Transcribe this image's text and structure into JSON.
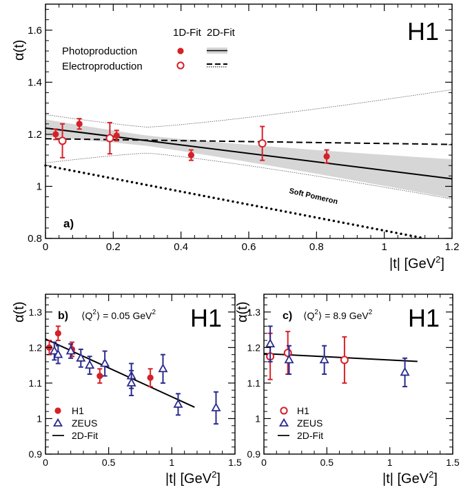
{
  "chart_data": [
    {
      "panel_label": "a)",
      "type": "scatter",
      "experiment": "H1",
      "xlabel_base": "|t|  [GeV",
      "xlabel_exp": "2",
      "xlabel_close": "]",
      "ylabel": "α(t)",
      "xlim": [
        0,
        1.2
      ],
      "ylim": [
        0.8,
        1.7
      ],
      "xticks": [
        "0",
        "0.2",
        "0.4",
        "0.6",
        "0.8",
        "1",
        "1.2"
      ],
      "yticks": [
        "0.8",
        "1",
        "1.2",
        "1.4",
        "1.6"
      ],
      "legend_headers": [
        "1D-Fit",
        "2D-Fit"
      ],
      "legend_rows": [
        "Photoproduction",
        "Electroproduction"
      ],
      "annotation": "Soft Pomeron",
      "colors": {
        "h1": "#d62028",
        "zeus": "#2a2a8c",
        "band": "#d6d6d6"
      },
      "series": [
        {
          "name": "Photoproduction",
          "marker": "filled-circle",
          "points": [
            {
              "x": 0.03,
              "y": 1.2,
              "yerr": 0.02
            },
            {
              "x": 0.1,
              "y": 1.24,
              "yerr": 0.02
            },
            {
              "x": 0.21,
              "y": 1.195,
              "yerr": 0.02
            },
            {
              "x": 0.43,
              "y": 1.12,
              "yerr": 0.02
            },
            {
              "x": 0.83,
              "y": 1.115,
              "yerr": 0.025
            }
          ]
        },
        {
          "name": "Electroproduction",
          "marker": "open-circle",
          "points": [
            {
              "x": 0.05,
              "y": 1.175,
              "yerr": 0.065
            },
            {
              "x": 0.19,
              "y": 1.185,
              "yerr": 0.06
            },
            {
              "x": 0.64,
              "y": 1.165,
              "yerr": 0.065
            }
          ]
        },
        {
          "name": "Photoproduction",
          "type": "line",
          "style": "solid",
          "x": [
            0,
            1.2
          ],
          "y": [
            1.224,
            1.029
          ]
        },
        {
          "name": "Electroproduction",
          "type": "line",
          "style": "dashed",
          "x": [
            0,
            1.2
          ],
          "y": [
            1.183,
            1.161
          ]
        },
        {
          "name": "Soft Pomeron",
          "type": "line",
          "style": "dotted",
          "x": [
            0,
            1.12
          ],
          "y": [
            1.08,
            0.8
          ]
        }
      ]
    },
    {
      "panel_label": "b)",
      "type": "scatter",
      "experiment": "H1",
      "title_prefix": "⟨Q",
      "title_exp": "2",
      "title_suffix": "⟩ = 0.05 GeV",
      "title_unit_exp": "2",
      "xlabel_base": "|t|  [GeV",
      "xlabel_exp": "2",
      "xlabel_close": "]",
      "ylabel": "α(t)",
      "xlim": [
        0,
        1.5
      ],
      "ylim": [
        0.9,
        1.35
      ],
      "xticks": [
        "0",
        "0.5",
        "1",
        "1.5"
      ],
      "yticks": [
        "0.9",
        "1",
        "1.1",
        "1.2",
        "1.3"
      ],
      "legend": [
        "H1",
        "ZEUS",
        "2D-Fit"
      ],
      "series": [
        {
          "name": "H1",
          "marker": "filled-circle",
          "points": [
            {
              "x": 0.03,
              "y": 1.2,
              "yerr": 0.02
            },
            {
              "x": 0.1,
              "y": 1.24,
              "yerr": 0.02
            },
            {
              "x": 0.21,
              "y": 1.195,
              "yerr": 0.02
            },
            {
              "x": 0.43,
              "y": 1.12,
              "yerr": 0.02
            },
            {
              "x": 0.83,
              "y": 1.115,
              "yerr": 0.025
            }
          ]
        },
        {
          "name": "ZEUS",
          "marker": "open-triangle",
          "points": [
            {
              "x": 0.07,
              "y": 1.19,
              "yerr": 0.025
            },
            {
              "x": 0.1,
              "y": 1.18,
              "yerr": 0.025
            },
            {
              "x": 0.2,
              "y": 1.19,
              "yerr": 0.02
            },
            {
              "x": 0.28,
              "y": 1.17,
              "yerr": 0.025
            },
            {
              "x": 0.35,
              "y": 1.15,
              "yerr": 0.025
            },
            {
              "x": 0.47,
              "y": 1.155,
              "yerr": 0.035
            },
            {
              "x": 0.68,
              "y": 1.12,
              "yerr": 0.035
            },
            {
              "x": 0.68,
              "y": 1.1,
              "yerr": 0.035
            },
            {
              "x": 0.93,
              "y": 1.14,
              "yerr": 0.04
            },
            {
              "x": 1.05,
              "y": 1.04,
              "yerr": 0.03
            },
            {
              "x": 1.35,
              "y": 1.03,
              "yerr": 0.045
            }
          ]
        },
        {
          "name": "2D-Fit",
          "type": "line",
          "style": "solid",
          "x": [
            0,
            1.18
          ],
          "y": [
            1.224,
            1.032
          ]
        }
      ]
    },
    {
      "panel_label": "c)",
      "type": "scatter",
      "experiment": "H1",
      "title_prefix": "⟨Q",
      "title_exp": "2",
      "title_suffix": "⟩ = 8.9 GeV",
      "title_unit_exp": "2",
      "xlabel_base": "|t|  [GeV",
      "xlabel_exp": "2",
      "xlabel_close": "]",
      "ylabel": "α(t)",
      "xlim": [
        0,
        1.5
      ],
      "ylim": [
        0.9,
        1.35
      ],
      "xticks": [
        "0",
        "0.5",
        "1",
        "1.5"
      ],
      "yticks": [
        "0.9",
        "1",
        "1.1",
        "1.2",
        "1.3"
      ],
      "legend": [
        "H1",
        "ZEUS",
        "2D-Fit"
      ],
      "series": [
        {
          "name": "H1",
          "marker": "open-circle",
          "points": [
            {
              "x": 0.05,
              "y": 1.175,
              "yerr": 0.065
            },
            {
              "x": 0.19,
              "y": 1.185,
              "yerr": 0.06
            },
            {
              "x": 0.64,
              "y": 1.165,
              "yerr": 0.065
            }
          ]
        },
        {
          "name": "ZEUS",
          "marker": "open-triangle",
          "points": [
            {
              "x": 0.05,
              "y": 1.21,
              "yerr": 0.05
            },
            {
              "x": 0.2,
              "y": 1.165,
              "yerr": 0.04
            },
            {
              "x": 0.48,
              "y": 1.165,
              "yerr": 0.04
            },
            {
              "x": 1.12,
              "y": 1.13,
              "yerr": 0.04
            }
          ]
        },
        {
          "name": "2D-Fit",
          "type": "line",
          "style": "solid",
          "x": [
            0,
            1.22
          ],
          "y": [
            1.183,
            1.161
          ]
        }
      ]
    }
  ]
}
